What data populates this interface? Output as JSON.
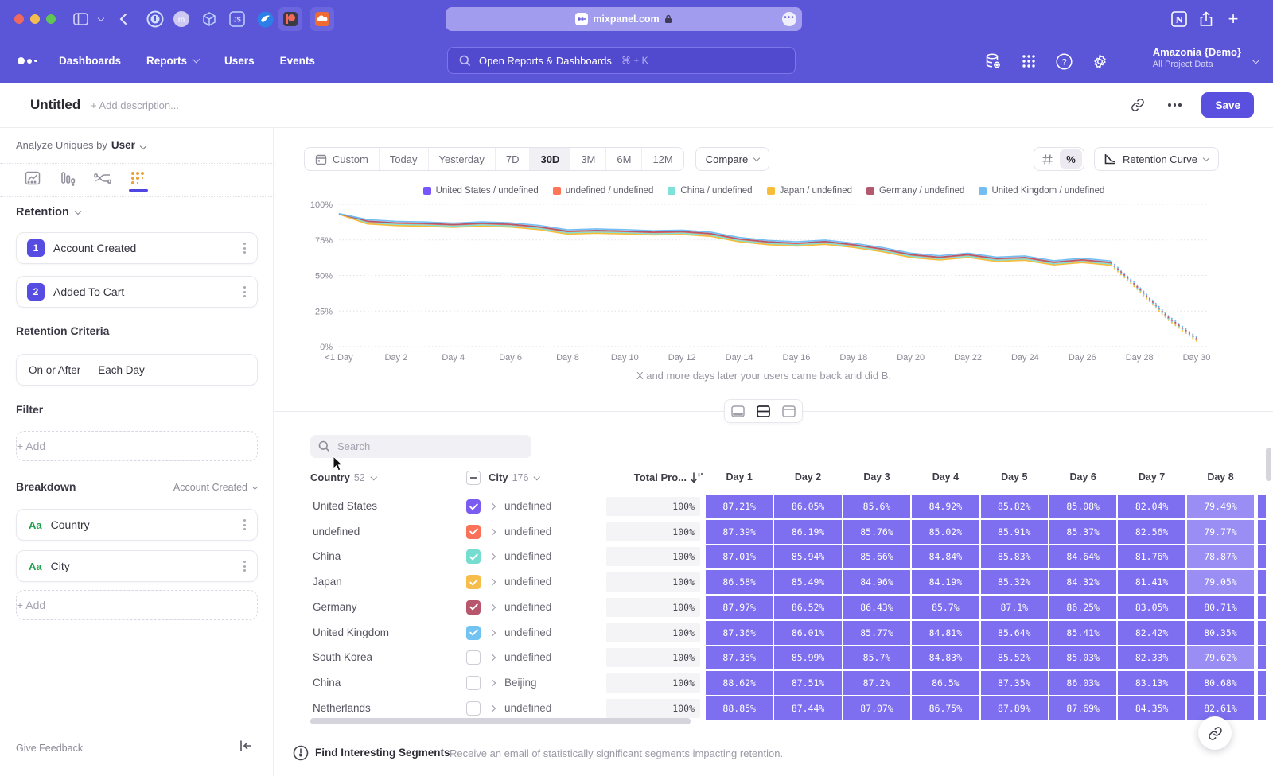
{
  "browser": {
    "url": "mixpanel.com"
  },
  "nav": {
    "links": [
      {
        "label": "Dashboards",
        "chevron": false
      },
      {
        "label": "Reports",
        "chevron": true
      },
      {
        "label": "Users",
        "chevron": false
      },
      {
        "label": "Events",
        "chevron": false
      }
    ],
    "search": {
      "placeholder": "Open Reports & Dashboards",
      "shortcut": "⌘ + K"
    },
    "project": {
      "name": "Amazonia {Demo}",
      "sub": "All Project Data"
    }
  },
  "header": {
    "title": "Untitled",
    "description_placeholder": "+ Add description...",
    "save_label": "Save"
  },
  "sidebar": {
    "analyze_label": "Analyze Uniques by",
    "analyze_value": "User",
    "retention_label": "Retention",
    "steps": [
      {
        "num": "1",
        "label": "Account Created"
      },
      {
        "num": "2",
        "label": "Added To Cart"
      }
    ],
    "criteria_label": "Retention Criteria",
    "criteria_parts": [
      "On or After",
      "Each Day"
    ],
    "filter_label": "Filter",
    "add_label": "+ Add",
    "breakdown_label": "Breakdown",
    "breakdown_on": "Account Created",
    "breakdown_items": [
      {
        "prefix": "Aa",
        "label": "Country"
      },
      {
        "prefix": "Aa",
        "label": "City"
      }
    ],
    "feedback_label": "Give Feedback"
  },
  "controls": {
    "ranges": [
      "Custom",
      "Today",
      "Yesterday",
      "7D",
      "30D",
      "3M",
      "6M",
      "12M"
    ],
    "active": "30D",
    "compare_label": "Compare",
    "hash_label": "#",
    "percent_label": "%",
    "view_label": "Retention Curve"
  },
  "chart_data": {
    "type": "line",
    "title": "Retention curve by Country / City breakdown",
    "caption": "X and more days later your users came back and did B.",
    "ylim": [
      0,
      100
    ],
    "yticks": [
      {
        "v": 0,
        "label": "0%"
      },
      {
        "v": 25,
        "label": "25%"
      },
      {
        "v": 50,
        "label": "50%"
      },
      {
        "v": 75,
        "label": "75%"
      },
      {
        "v": 100,
        "label": "100%"
      }
    ],
    "x_ticks": [
      {
        "day": 0,
        "label": "<1 Day"
      },
      {
        "day": 2,
        "label": "Day 2"
      },
      {
        "day": 4,
        "label": "Day 4"
      },
      {
        "day": 6,
        "label": "Day 6"
      },
      {
        "day": 8,
        "label": "Day 8"
      },
      {
        "day": 10,
        "label": "Day 10"
      },
      {
        "day": 12,
        "label": "Day 12"
      },
      {
        "day": 14,
        "label": "Day 14"
      },
      {
        "day": 16,
        "label": "Day 16"
      },
      {
        "day": 18,
        "label": "Day 18"
      },
      {
        "day": 20,
        "label": "Day 20"
      },
      {
        "day": 22,
        "label": "Day 22"
      },
      {
        "day": 24,
        "label": "Day 24"
      },
      {
        "day": 26,
        "label": "Day 26"
      },
      {
        "day": 28,
        "label": "Day 28"
      },
      {
        "day": 30,
        "label": "Day 30"
      }
    ],
    "base_values": [
      93.2,
      87.4,
      86.2,
      85.8,
      85.0,
      85.9,
      85.2,
      83.4,
      80.3,
      80.9,
      80.4,
      79.7,
      80.1,
      78.7,
      74.9,
      72.9,
      71.9,
      73.1,
      70.9,
      67.9,
      63.9,
      62.1,
      63.9,
      61.1,
      61.9,
      58.6,
      60.3,
      58.4,
      40.0,
      20.0,
      5.0
    ],
    "dashed_from_index": 27,
    "series": [
      {
        "name": "United States / undefined",
        "color": "#7856ff",
        "offset": 0.0
      },
      {
        "name": "undefined / undefined",
        "color": "#ff7557",
        "offset": 0.3
      },
      {
        "name": "China / undefined",
        "color": "#80e1d9",
        "offset": -0.4
      },
      {
        "name": "Japan / undefined",
        "color": "#f8bc3b",
        "offset": -1.2
      },
      {
        "name": "Germany / undefined",
        "color": "#b2596e",
        "offset": 0.8
      },
      {
        "name": "United Kingdom / undefined",
        "color": "#72bef4",
        "offset": 1.8
      }
    ]
  },
  "table": {
    "search_placeholder": "Search",
    "country_header": {
      "label": "Country",
      "count": "52"
    },
    "city_header": {
      "label": "City",
      "count": "176"
    },
    "total_header": "Total Pro...",
    "day_headers": [
      "Day 1",
      "Day 2",
      "Day 3",
      "Day 4",
      "Day 5",
      "Day 6",
      "Day 7",
      "Day 8"
    ],
    "rows": [
      {
        "country": "United States",
        "checked": true,
        "color": "#7b5cf0",
        "city": "undefined",
        "total": "100%",
        "values": [
          "87.21%",
          "86.05%",
          "85.6%",
          "84.92%",
          "85.82%",
          "85.08%",
          "82.04%",
          "79.49%"
        ]
      },
      {
        "country": "undefined",
        "checked": true,
        "color": "#fa7059",
        "city": "undefined",
        "total": "100%",
        "values": [
          "87.39%",
          "86.19%",
          "85.76%",
          "85.02%",
          "85.91%",
          "85.37%",
          "82.56%",
          "79.77%"
        ]
      },
      {
        "country": "China",
        "checked": true,
        "color": "#74ddd0",
        "city": "undefined",
        "total": "100%",
        "values": [
          "87.01%",
          "85.94%",
          "85.66%",
          "84.84%",
          "85.83%",
          "84.64%",
          "81.76%",
          "78.87%"
        ]
      },
      {
        "country": "Japan",
        "checked": true,
        "color": "#f7bd4a",
        "city": "undefined",
        "total": "100%",
        "values": [
          "86.58%",
          "85.49%",
          "84.96%",
          "84.19%",
          "85.32%",
          "84.32%",
          "81.41%",
          "79.05%"
        ]
      },
      {
        "country": "Germany",
        "checked": true,
        "color": "#b8566c",
        "city": "undefined",
        "total": "100%",
        "values": [
          "87.97%",
          "86.52%",
          "86.43%",
          "85.7%",
          "87.1%",
          "86.25%",
          "83.05%",
          "80.71%"
        ]
      },
      {
        "country": "United Kingdom",
        "checked": true,
        "color": "#72c3f2",
        "city": "undefined",
        "total": "100%",
        "values": [
          "87.36%",
          "86.01%",
          "85.77%",
          "84.81%",
          "85.64%",
          "85.41%",
          "82.42%",
          "80.35%"
        ]
      },
      {
        "country": "South Korea",
        "checked": false,
        "color": "",
        "city": "undefined",
        "total": "100%",
        "values": [
          "87.35%",
          "85.99%",
          "85.7%",
          "84.83%",
          "85.52%",
          "85.03%",
          "82.33%",
          "79.62%"
        ]
      },
      {
        "country": "China",
        "checked": false,
        "color": "",
        "city": "Beijing",
        "total": "100%",
        "values": [
          "88.62%",
          "87.51%",
          "87.2%",
          "86.5%",
          "87.35%",
          "86.03%",
          "83.13%",
          "80.68%"
        ]
      },
      {
        "country": "Netherlands",
        "checked": false,
        "color": "",
        "city": "undefined",
        "total": "100%",
        "values": [
          "88.85%",
          "87.44%",
          "87.07%",
          "86.75%",
          "87.89%",
          "87.69%",
          "84.35%",
          "82.61%"
        ]
      }
    ]
  },
  "footer": {
    "title": "Find Interesting Segments",
    "desc": "Receive an email of statistically significant segments impacting retention."
  }
}
